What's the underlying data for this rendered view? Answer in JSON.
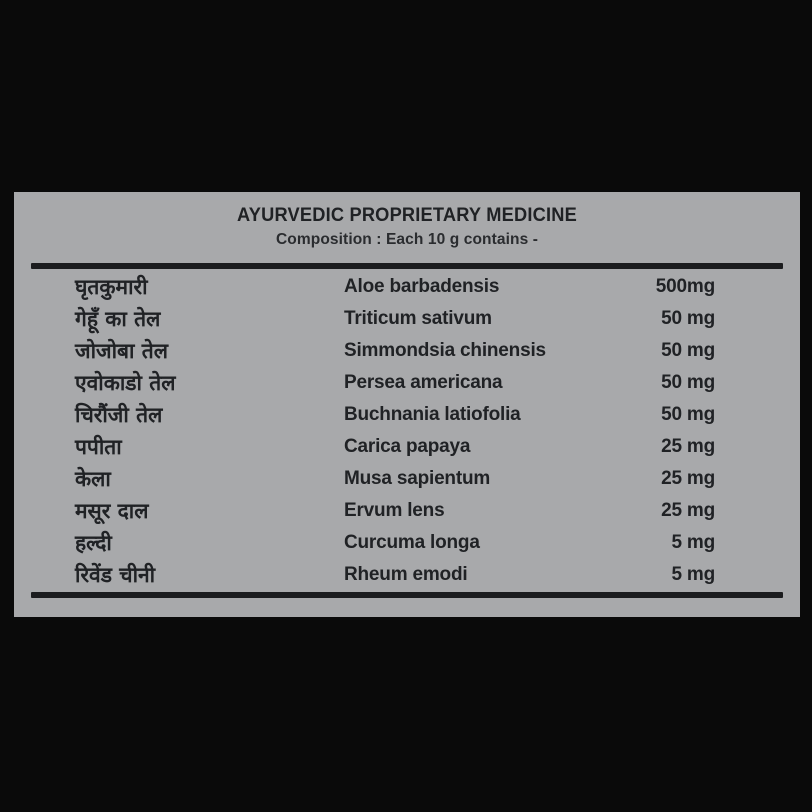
{
  "label": {
    "title": "AYURVEDIC PROPRIETARY MEDICINE",
    "subtitle": "Composition : Each 10 g contains -",
    "colors": {
      "background": "#0a0a0a",
      "panel": "#a8a9ab",
      "text": "#202225",
      "rule": "#1b1c1e"
    },
    "rows": [
      {
        "hindi": "घृतकुमारी",
        "latin": "Aloe barbadensis",
        "amount": "500mg"
      },
      {
        "hindi": "गेहूँ का तेल",
        "latin": "Triticum sativum",
        "amount": "50 mg"
      },
      {
        "hindi": "जोजोबा तेल",
        "latin": "Simmondsia chinensis",
        "amount": "50 mg"
      },
      {
        "hindi": "एवोकाडो तेल",
        "latin": "Persea americana",
        "amount": "50 mg"
      },
      {
        "hindi": "चिरौंजी तेल",
        "latin": "Buchnania latiofolia",
        "amount": "50 mg"
      },
      {
        "hindi": "पपीता",
        "latin": "Carica papaya",
        "amount": "25 mg"
      },
      {
        "hindi": "केला",
        "latin": "Musa sapientum",
        "amount": "25 mg"
      },
      {
        "hindi": "मसूर दाल",
        "latin": "Ervum lens",
        "amount": "25 mg"
      },
      {
        "hindi": "हल्दी",
        "latin": "Curcuma longa",
        "amount": "5 mg"
      },
      {
        "hindi": "रिवेंड चीनी",
        "latin": "Rheum emodi",
        "amount": "5 mg"
      }
    ]
  }
}
